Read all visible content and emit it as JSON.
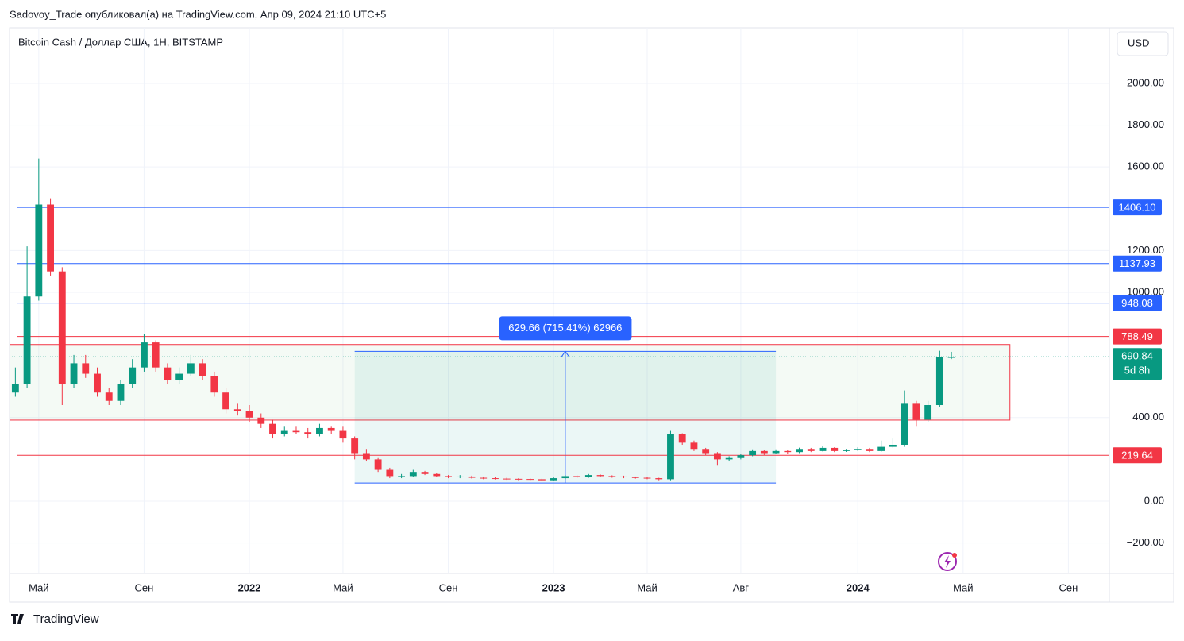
{
  "header": {
    "text": "Sadovoy_Trade опубликовал(а) на TradingView.com, Апр 09, 2024 21:10 UTC+5"
  },
  "footer": {
    "logo": "TradingView"
  },
  "chart_data": {
    "type": "candlestick",
    "title": "Bitcoin Cash / Доллар США, 1H, BITSTAMP",
    "currency": "USD",
    "up_color": "#089981",
    "down_color": "#f23645",
    "categories": [
      null,
      null,
      "Май",
      null,
      null,
      null,
      null,
      null,
      null,
      null,
      null,
      "Сен",
      null,
      null,
      null,
      null,
      null,
      null,
      null,
      null,
      "2022",
      null,
      null,
      null,
      null,
      null,
      null,
      null,
      "Май",
      null,
      null,
      null,
      null,
      null,
      null,
      null,
      null,
      "Сен",
      null,
      null,
      null,
      null,
      null,
      null,
      null,
      null,
      "2023",
      null,
      null,
      null,
      null,
      null,
      null,
      null,
      "Май",
      null,
      null,
      null,
      null,
      null,
      null,
      null,
      "Авг",
      null,
      null,
      null,
      null,
      null,
      null,
      null,
      null,
      null,
      "2024",
      null,
      null,
      null,
      null,
      null,
      null,
      null,
      null,
      "Май",
      null,
      null,
      null,
      null,
      null,
      null,
      null,
      null,
      "Сен",
      null,
      null,
      null
    ],
    "open": [
      520,
      560,
      980,
      1420,
      1100,
      560,
      660,
      610,
      520,
      480,
      560,
      640,
      760,
      640,
      580,
      610,
      660,
      600,
      520,
      440,
      430,
      400,
      370,
      320,
      340,
      330,
      320,
      350,
      340,
      300,
      230,
      200,
      150,
      120,
      120,
      140,
      130,
      120,
      115,
      118,
      112,
      110,
      108,
      107,
      106,
      105,
      100,
      110,
      120,
      115,
      125,
      120,
      118,
      115,
      112,
      110,
      105,
      320,
      280,
      250,
      230,
      200,
      210,
      220,
      240,
      230,
      240,
      235,
      250,
      240,
      255,
      240,
      245,
      250,
      240,
      260,
      270,
      470,
      390,
      460,
      690,
      null,
      null,
      null,
      null,
      null,
      null,
      null,
      null,
      null,
      null,
      null,
      null,
      null
    ],
    "high": [
      640,
      1220,
      1640,
      1450,
      1120,
      700,
      700,
      640,
      540,
      580,
      680,
      800,
      770,
      660,
      640,
      700,
      680,
      620,
      540,
      470,
      460,
      420,
      390,
      360,
      360,
      350,
      370,
      360,
      360,
      310,
      250,
      210,
      160,
      130,
      150,
      145,
      135,
      125,
      125,
      122,
      118,
      115,
      112,
      110,
      110,
      108,
      115,
      125,
      124,
      130,
      128,
      124,
      122,
      118,
      115,
      112,
      340,
      325,
      290,
      255,
      235,
      215,
      228,
      248,
      245,
      248,
      245,
      256,
      255,
      262,
      258,
      250,
      258,
      255,
      290,
      300,
      530,
      480,
      480,
      720,
      715,
      null,
      null,
      null,
      null,
      null,
      null,
      null,
      null,
      null,
      null,
      null,
      null,
      null
    ],
    "low": [
      500,
      540,
      960,
      1080,
      460,
      540,
      590,
      500,
      460,
      460,
      540,
      620,
      620,
      560,
      560,
      600,
      580,
      500,
      420,
      410,
      380,
      350,
      300,
      310,
      320,
      300,
      310,
      320,
      280,
      200,
      190,
      140,
      110,
      110,
      115,
      125,
      115,
      110,
      110,
      108,
      105,
      104,
      102,
      100,
      100,
      95,
      96,
      105,
      110,
      112,
      115,
      112,
      110,
      108,
      105,
      100,
      100,
      270,
      240,
      220,
      170,
      190,
      200,
      215,
      220,
      225,
      228,
      230,
      235,
      238,
      235,
      236,
      240,
      235,
      236,
      255,
      260,
      360,
      380,
      450,
      680,
      null,
      null,
      null,
      null,
      null,
      null,
      null,
      null,
      null,
      null,
      null,
      null,
      null
    ],
    "close": [
      560,
      980,
      1420,
      1100,
      560,
      660,
      610,
      520,
      480,
      560,
      640,
      760,
      640,
      580,
      610,
      660,
      600,
      520,
      440,
      430,
      400,
      370,
      320,
      340,
      330,
      320,
      350,
      340,
      300,
      230,
      200,
      150,
      120,
      120,
      140,
      130,
      120,
      115,
      118,
      112,
      110,
      108,
      107,
      106,
      105,
      100,
      110,
      120,
      115,
      125,
      120,
      118,
      115,
      112,
      110,
      105,
      320,
      280,
      250,
      230,
      200,
      210,
      220,
      240,
      230,
      240,
      235,
      250,
      240,
      255,
      240,
      245,
      250,
      240,
      260,
      270,
      470,
      390,
      460,
      690,
      690,
      null,
      null,
      null,
      null,
      null,
      null,
      null,
      null,
      null,
      null,
      null,
      null,
      null
    ],
    "ylim": [
      -346,
      2266
    ],
    "yticks": [
      {
        "value": -200,
        "label": "−200.00"
      },
      {
        "value": 0,
        "label": "0.00"
      },
      {
        "value": 400,
        "label": "400.00"
      },
      {
        "value": 1000,
        "label": "1000.00"
      },
      {
        "value": 1200,
        "label": "1200.00"
      },
      {
        "value": 1600,
        "label": "1600.00"
      },
      {
        "value": 1800,
        "label": "1800.00"
      },
      {
        "value": 2000,
        "label": "2000.00"
      }
    ],
    "grid": true,
    "levels": [
      {
        "value": 1406.1,
        "label": "1406.10",
        "color": "#2962ff"
      },
      {
        "value": 1137.93,
        "label": "1137.93",
        "color": "#2962ff"
      },
      {
        "value": 948.08,
        "label": "948.08",
        "color": "#2962ff"
      },
      {
        "value": 788.49,
        "label": "788.49",
        "color": "#f23645"
      },
      {
        "value": 219.64,
        "label": "219.64",
        "color": "#f23645"
      }
    ],
    "last_price": {
      "value": 690.84,
      "label": "690.84",
      "countdown": "5d 8h",
      "color": "#089981"
    },
    "zone": {
      "low": 388,
      "high": 750,
      "x_from": 0,
      "x_to": 85,
      "color": "#f23645"
    },
    "measure": {
      "from": 87,
      "to": 717,
      "x_from": 29,
      "x_to": 65,
      "label": "629.66 (715.41%) 62966",
      "color": "#2962ff"
    }
  }
}
